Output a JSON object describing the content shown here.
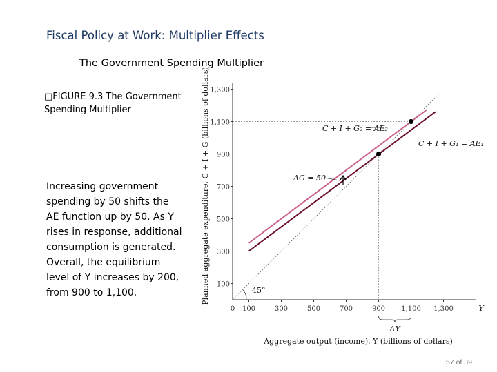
{
  "slide": {
    "title": "Fiscal Policy at Work: Multiplier Effects",
    "subtitle": "The Government Spending Multiplier",
    "figure_caption_line1": "FIGURE 9.3  The Government",
    "figure_caption_line2": "Spending Multiplier",
    "caption_glyph": "□",
    "description_lines": [
      "Increasing government spending by 50 shifts the AE function up by 50. As Y rises in response, additional consumption is generated.",
      "Overall, the equilibrium level of Y increases by 200, from  900 to 1,100."
    ],
    "page_number": "57 of 39"
  },
  "chart_data": {
    "type": "line",
    "ylabel": "Planned aggregate expenditure, C + I + G (billions of dollars)",
    "xlabel": "Aggregate output (income), Y (billions of dollars)",
    "x_end_label": "Y",
    "x_ticks": [
      "0",
      "100",
      "300",
      "500",
      "700",
      "900",
      "1,100",
      "1,300"
    ],
    "x_tick_values": [
      0,
      100,
      300,
      500,
      700,
      900,
      1100,
      1300
    ],
    "y_ticks": [
      "100",
      "300",
      "500",
      "700",
      "900",
      "1,100",
      "1,300"
    ],
    "y_tick_values": [
      100,
      300,
      500,
      700,
      900,
      1100,
      1300
    ],
    "xlim": [
      0,
      1400
    ],
    "ylim": [
      0,
      1350
    ],
    "series": [
      {
        "name": "C + I + G₁ = AE₁",
        "color": "#6b1033",
        "points": [
          [
            100,
            300
          ],
          [
            1250,
            1160
          ]
        ]
      },
      {
        "name": "C + I + G₂ = AE₂",
        "color": "#cc5f8f",
        "points": [
          [
            100,
            350
          ],
          [
            1200,
            1175
          ]
        ]
      },
      {
        "name": "45°",
        "color": "#666666",
        "dashed": true,
        "points": [
          [
            0,
            0
          ],
          [
            1270,
            1270
          ]
        ]
      }
    ],
    "equilibria": [
      {
        "x": 900,
        "y": 900
      },
      {
        "x": 1100,
        "y": 1100
      }
    ],
    "annotations": {
      "delta_g": "ΔG = 50",
      "delta_y": "ΔY",
      "angle": "45°"
    },
    "colors": {
      "ae1": "#6b1033",
      "ae2": "#cc5f8f",
      "guide": "#777777"
    }
  }
}
